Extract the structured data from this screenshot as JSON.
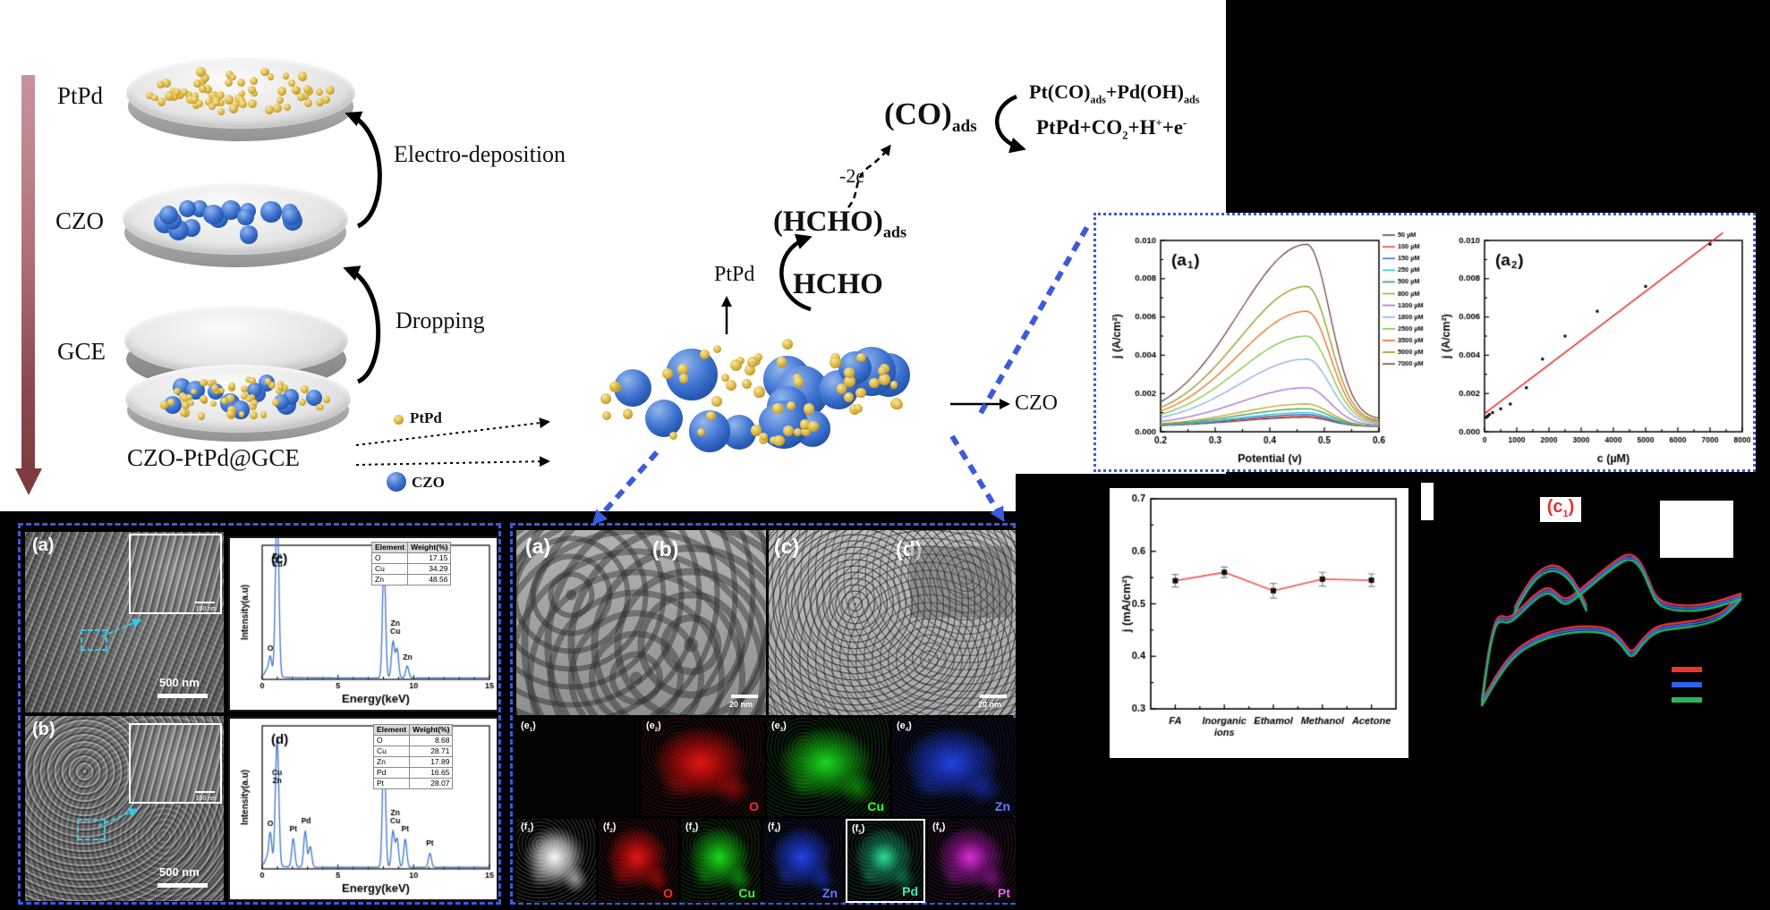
{
  "colors": {
    "background": "#000000",
    "panel": "#ffffff",
    "box_border": "#3b5bdb",
    "cyan_dash": "#35c8e8",
    "gold_particle": "#d9b13b",
    "blue_particle": "#3d72cf",
    "fit_line": "#e83030",
    "map_colors": {
      "O": "#ff2a2a",
      "Cu": "#33ff33",
      "Zn": "#5f7dff",
      "Pd": "#3cf0b0",
      "Pt": "#f060f0"
    }
  },
  "process": {
    "layer_labels": {
      "ptpd": "PtPd",
      "czo": "CZO",
      "gce": "GCE"
    },
    "steps": {
      "electro": "Electro-deposition",
      "dropping": "Dropping"
    },
    "product": "CZO-PtPd@GCE",
    "legend": {
      "ptpd": "PtPd",
      "czo": "CZO"
    }
  },
  "reaction": {
    "hcho": "HCHO",
    "hcho_ads": "(HCHO)<sub>ads</sub>",
    "catalyst": "PtPd",
    "electrons": "-2e",
    "co_ads": "(CO)<sub>ads</sub>",
    "eq1": "Pt(CO)<sub>ads</sub>+Pd(OH)<sub>ads</sub>",
    "eq2": "PtPd+CO<sub>2</sub>+H<sup>+</sup>+e<sup>-</sup>",
    "cluster_czo": "CZO"
  },
  "c1_chip": "(c<sub>1</sub>)",
  "sem": {
    "a_label": "(a)",
    "b_label": "(b)",
    "scale_bar": "500 nm",
    "inset_scale": "100 nm"
  },
  "tem": {
    "labels": [
      "(a)",
      "(b)",
      "(c)",
      "(d)"
    ],
    "scale_bar": "20 nm",
    "maps_e": [
      {
        "sublabel": "(e<sub>1</sub>)",
        "element": ""
      },
      {
        "sublabel": "(e<sub>2</sub>)",
        "element": "O"
      },
      {
        "sublabel": "(e<sub>3</sub>)",
        "element": "Cu"
      },
      {
        "sublabel": "(e<sub>4</sub>)",
        "element": "Zn"
      }
    ],
    "maps_f": [
      {
        "sublabel": "(f<sub>1</sub>)",
        "element": ""
      },
      {
        "sublabel": "(f<sub>2</sub>)",
        "element": "O"
      },
      {
        "sublabel": "(f<sub>3</sub>)",
        "element": "Cu"
      },
      {
        "sublabel": "(f<sub>4</sub>)",
        "element": "Zn"
      },
      {
        "sublabel": "(f<sub>5</sub>)",
        "element": "Pd"
      },
      {
        "sublabel": "(f<sub>6</sub>)",
        "element": "Pt"
      }
    ]
  },
  "chart_data": [
    {
      "id": "a1",
      "type": "line",
      "label": "a1",
      "xlabel": "Potential (v)",
      "ylabel": "j (A/cm²)",
      "xlim": [
        0.2,
        0.6
      ],
      "ylim": [
        0,
        0.01
      ],
      "xticks": [
        0.2,
        0.3,
        0.4,
        0.5,
        0.6
      ],
      "yticks": [
        0.0,
        0.002,
        0.004,
        0.006,
        0.008,
        0.01
      ],
      "legend_position": "top-right",
      "peak_potential": 0.468,
      "series": [
        {
          "name": "50 µM",
          "color": "#4d4d4d",
          "peak": 0.00075
        },
        {
          "name": "100 µM",
          "color": "#e8483f",
          "peak": 0.00082
        },
        {
          "name": "150 µM",
          "color": "#3f6fd8",
          "peak": 0.0009
        },
        {
          "name": "250 µM",
          "color": "#29c7cf",
          "peak": 0.001
        },
        {
          "name": "500 µM",
          "color": "#2fa356",
          "peak": 0.0012
        },
        {
          "name": "800 µM",
          "color": "#c8a11f",
          "peak": 0.00145
        },
        {
          "name": "1300 µM",
          "color": "#a46ddb",
          "peak": 0.0023
        },
        {
          "name": "1800 µM",
          "color": "#85b3e0",
          "peak": 0.0038
        },
        {
          "name": "2500 µM",
          "color": "#78c840",
          "peak": 0.005
        },
        {
          "name": "3500 µM",
          "color": "#f06a1e",
          "peak": 0.0063
        },
        {
          "name": "5000 µM",
          "color": "#95951d",
          "peak": 0.0076
        },
        {
          "name": "7000 µM",
          "color": "#7a4646",
          "peak": 0.0098
        }
      ]
    },
    {
      "id": "a2",
      "type": "scatter",
      "label": "a2",
      "xlabel": "c (µM)",
      "ylabel": "j (A/cm²)",
      "xlim": [
        0,
        8000
      ],
      "ylim": [
        0,
        0.01
      ],
      "xticks": [
        0,
        1000,
        2000,
        3000,
        4000,
        5000,
        6000,
        7000,
        8000
      ],
      "yticks": [
        0.0,
        0.002,
        0.004,
        0.006,
        0.008,
        0.01
      ],
      "points": {
        "x": [
          50,
          100,
          150,
          250,
          500,
          800,
          1300,
          1800,
          2500,
          3500,
          5000,
          7000
        ],
        "y": [
          0.00075,
          0.00082,
          0.0009,
          0.001,
          0.0012,
          0.00145,
          0.0023,
          0.0038,
          0.005,
          0.0063,
          0.0076,
          0.0098
        ]
      },
      "fit": {
        "color": "#e83030",
        "x0": 0,
        "y0": 0.00095,
        "x1": 7400,
        "y1": 0.0104
      }
    },
    {
      "id": "selectivity",
      "type": "line",
      "ylabel": "j (mA/cm²)",
      "ylim": [
        0.3,
        0.7
      ],
      "yticks": [
        0.3,
        0.4,
        0.5,
        0.6,
        0.7
      ],
      "categories": [
        "FA",
        "Inorganic\nions",
        "Ethamol",
        "Methanol",
        "Acetone"
      ],
      "values": [
        0.544,
        0.56,
        0.525,
        0.547,
        0.545
      ],
      "errors": [
        0.012,
        0.01,
        0.014,
        0.013,
        0.012
      ],
      "line_color": "#f26060",
      "marker_color": "#111111"
    },
    {
      "id": "c1",
      "type": "cv",
      "label": "c1",
      "label_color": "#e83030",
      "curve_colors": [
        "#ee3333",
        "#2f62e8",
        "#2bb45a"
      ],
      "loop_forward": [
        [
          0.05,
          0.97
        ],
        [
          0.07,
          0.72
        ],
        [
          0.095,
          0.53
        ],
        [
          0.115,
          0.49
        ],
        [
          0.145,
          0.51
        ],
        [
          0.19,
          0.45
        ],
        [
          0.24,
          0.37
        ],
        [
          0.285,
          0.33
        ],
        [
          0.315,
          0.37
        ],
        [
          0.345,
          0.41
        ],
        [
          0.4,
          0.345
        ],
        [
          0.47,
          0.25
        ],
        [
          0.54,
          0.165
        ],
        [
          0.575,
          0.145
        ],
        [
          0.61,
          0.19
        ],
        [
          0.64,
          0.3
        ],
        [
          0.665,
          0.395
        ],
        [
          0.71,
          0.43
        ],
        [
          0.78,
          0.44
        ],
        [
          0.86,
          0.425
        ],
        [
          0.965,
          0.37
        ]
      ],
      "loop_return": [
        [
          0.965,
          0.37
        ],
        [
          0.915,
          0.465
        ],
        [
          0.835,
          0.515
        ],
        [
          0.74,
          0.535
        ],
        [
          0.665,
          0.55
        ],
        [
          0.615,
          0.625
        ],
        [
          0.578,
          0.71
        ],
        [
          0.545,
          0.63
        ],
        [
          0.5,
          0.565
        ],
        [
          0.42,
          0.55
        ],
        [
          0.33,
          0.565
        ],
        [
          0.25,
          0.605
        ],
        [
          0.175,
          0.675
        ],
        [
          0.115,
          0.79
        ],
        [
          0.05,
          0.97
        ]
      ],
      "upper_arc": [
        [
          0.165,
          0.45
        ],
        [
          0.205,
          0.33
        ],
        [
          0.255,
          0.235
        ],
        [
          0.305,
          0.205
        ],
        [
          0.35,
          0.245
        ],
        [
          0.39,
          0.335
        ],
        [
          0.42,
          0.44
        ]
      ]
    },
    {
      "id": "eds_c",
      "type": "spectrum",
      "label": "(c)",
      "xlabel": "Energy(keV)",
      "ylabel": "Intensity(a.u)",
      "xlim": [
        0,
        15
      ],
      "xticks": [
        0,
        5,
        10,
        15
      ],
      "color": "#4a7fd4",
      "peaks": [
        [
          0.28,
          0.05
        ],
        [
          0.53,
          0.17
        ],
        [
          0.93,
          0.72
        ],
        [
          1.03,
          0.88
        ],
        [
          8.04,
          1.0
        ],
        [
          8.63,
          0.3
        ],
        [
          8.9,
          0.24
        ],
        [
          9.57,
          0.1
        ]
      ],
      "peak_labels": [
        {
          "x": 0.53,
          "h": 0.2,
          "labels": [
            "O"
          ]
        },
        {
          "x": 1.0,
          "h": 0.9,
          "labels": [
            "Zn",
            "Cu"
          ]
        },
        {
          "x": 8.04,
          "h": 1.0,
          "labels": [
            "Cu"
          ]
        },
        {
          "x": 8.78,
          "h": 0.34,
          "labels": [
            "Zn",
            "Cu"
          ]
        },
        {
          "x": 9.6,
          "h": 0.13,
          "labels": [
            "Zn"
          ]
        }
      ],
      "table": {
        "headers": [
          "Element",
          "Weight(%)"
        ],
        "rows": [
          [
            "O",
            "17.15"
          ],
          [
            "Cu",
            "34.29"
          ],
          [
            "Zn",
            "48.56"
          ]
        ]
      }
    },
    {
      "id": "eds_d",
      "type": "spectrum",
      "label": "(d)",
      "xlabel": "Energy(keV)",
      "ylabel": "Intensity(a.u)",
      "xlim": [
        0,
        15
      ],
      "xticks": [
        0,
        5,
        10,
        15
      ],
      "color": "#4a7fd4",
      "peaks": [
        [
          0.28,
          0.05
        ],
        [
          0.53,
          0.26
        ],
        [
          0.93,
          0.52
        ],
        [
          1.03,
          0.6
        ],
        [
          2.05,
          0.22
        ],
        [
          2.84,
          0.28
        ],
        [
          3.17,
          0.16
        ],
        [
          8.04,
          1.0
        ],
        [
          8.63,
          0.28
        ],
        [
          8.9,
          0.22
        ],
        [
          9.44,
          0.22
        ],
        [
          11.07,
          0.11
        ]
      ],
      "peak_labels": [
        {
          "x": 0.53,
          "h": 0.3,
          "labels": [
            "O"
          ]
        },
        {
          "x": 0.98,
          "h": 0.64,
          "labels": [
            "Cu",
            "Zn"
          ]
        },
        {
          "x": 2.05,
          "h": 0.26,
          "labels": [
            "Pt"
          ]
        },
        {
          "x": 2.9,
          "h": 0.32,
          "labels": [
            "Pd"
          ]
        },
        {
          "x": 8.04,
          "h": 1.0,
          "labels": [
            "Cu",
            "Pt"
          ]
        },
        {
          "x": 8.78,
          "h": 0.32,
          "labels": [
            "Zn",
            "Cu"
          ]
        },
        {
          "x": 9.44,
          "h": 0.26,
          "labels": [
            "Pt"
          ]
        },
        {
          "x": 11.07,
          "h": 0.15,
          "labels": [
            "Pt"
          ]
        }
      ],
      "table": {
        "headers": [
          "Element",
          "Weight(%)"
        ],
        "rows": [
          [
            "O",
            "8.68"
          ],
          [
            "Cu",
            "28.71"
          ],
          [
            "Zn",
            "17.89"
          ],
          [
            "Pd",
            "16.65"
          ],
          [
            "Pt",
            "28.07"
          ]
        ]
      }
    }
  ]
}
